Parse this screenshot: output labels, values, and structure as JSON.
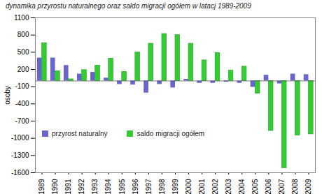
{
  "chart_data": {
    "type": "bar",
    "title": "dynamika przyrostu naturalnego oraz saldo migracji ogółem w latacj 1989-2009",
    "ylabel": "osoby",
    "categories": [
      "1989",
      "1990",
      "1991",
      "1992",
      "1993",
      "1994",
      "1995",
      "1996",
      "1997",
      "1998",
      "1999",
      "2000",
      "2001",
      "2002",
      "2003",
      "2004",
      "2005",
      "2006",
      "2007",
      "2008",
      "2009"
    ],
    "series": [
      {
        "name": "przyrost naturalny",
        "color": "#6666cc",
        "values": [
          400,
          400,
          270,
          120,
          150,
          50,
          -60,
          -70,
          -210,
          -60,
          -120,
          30,
          -40,
          -40,
          -20,
          -40,
          -110,
          100,
          -50,
          120,
          110
        ]
      },
      {
        "name": "saldo migracji ogółem",
        "color": "#33cc33",
        "values": [
          660,
          170,
          30,
          190,
          270,
          390,
          160,
          500,
          650,
          820,
          800,
          650,
          360,
          490,
          180,
          250,
          -220,
          -870,
          -1520,
          -950,
          -930
        ]
      }
    ],
    "ylim": [
      -1600,
      1100
    ],
    "yticks": [
      -1600,
      -1300,
      -1000,
      -700,
      -400,
      -100,
      200,
      500,
      800,
      1100
    ],
    "grid": false,
    "legend": "lower left"
  }
}
